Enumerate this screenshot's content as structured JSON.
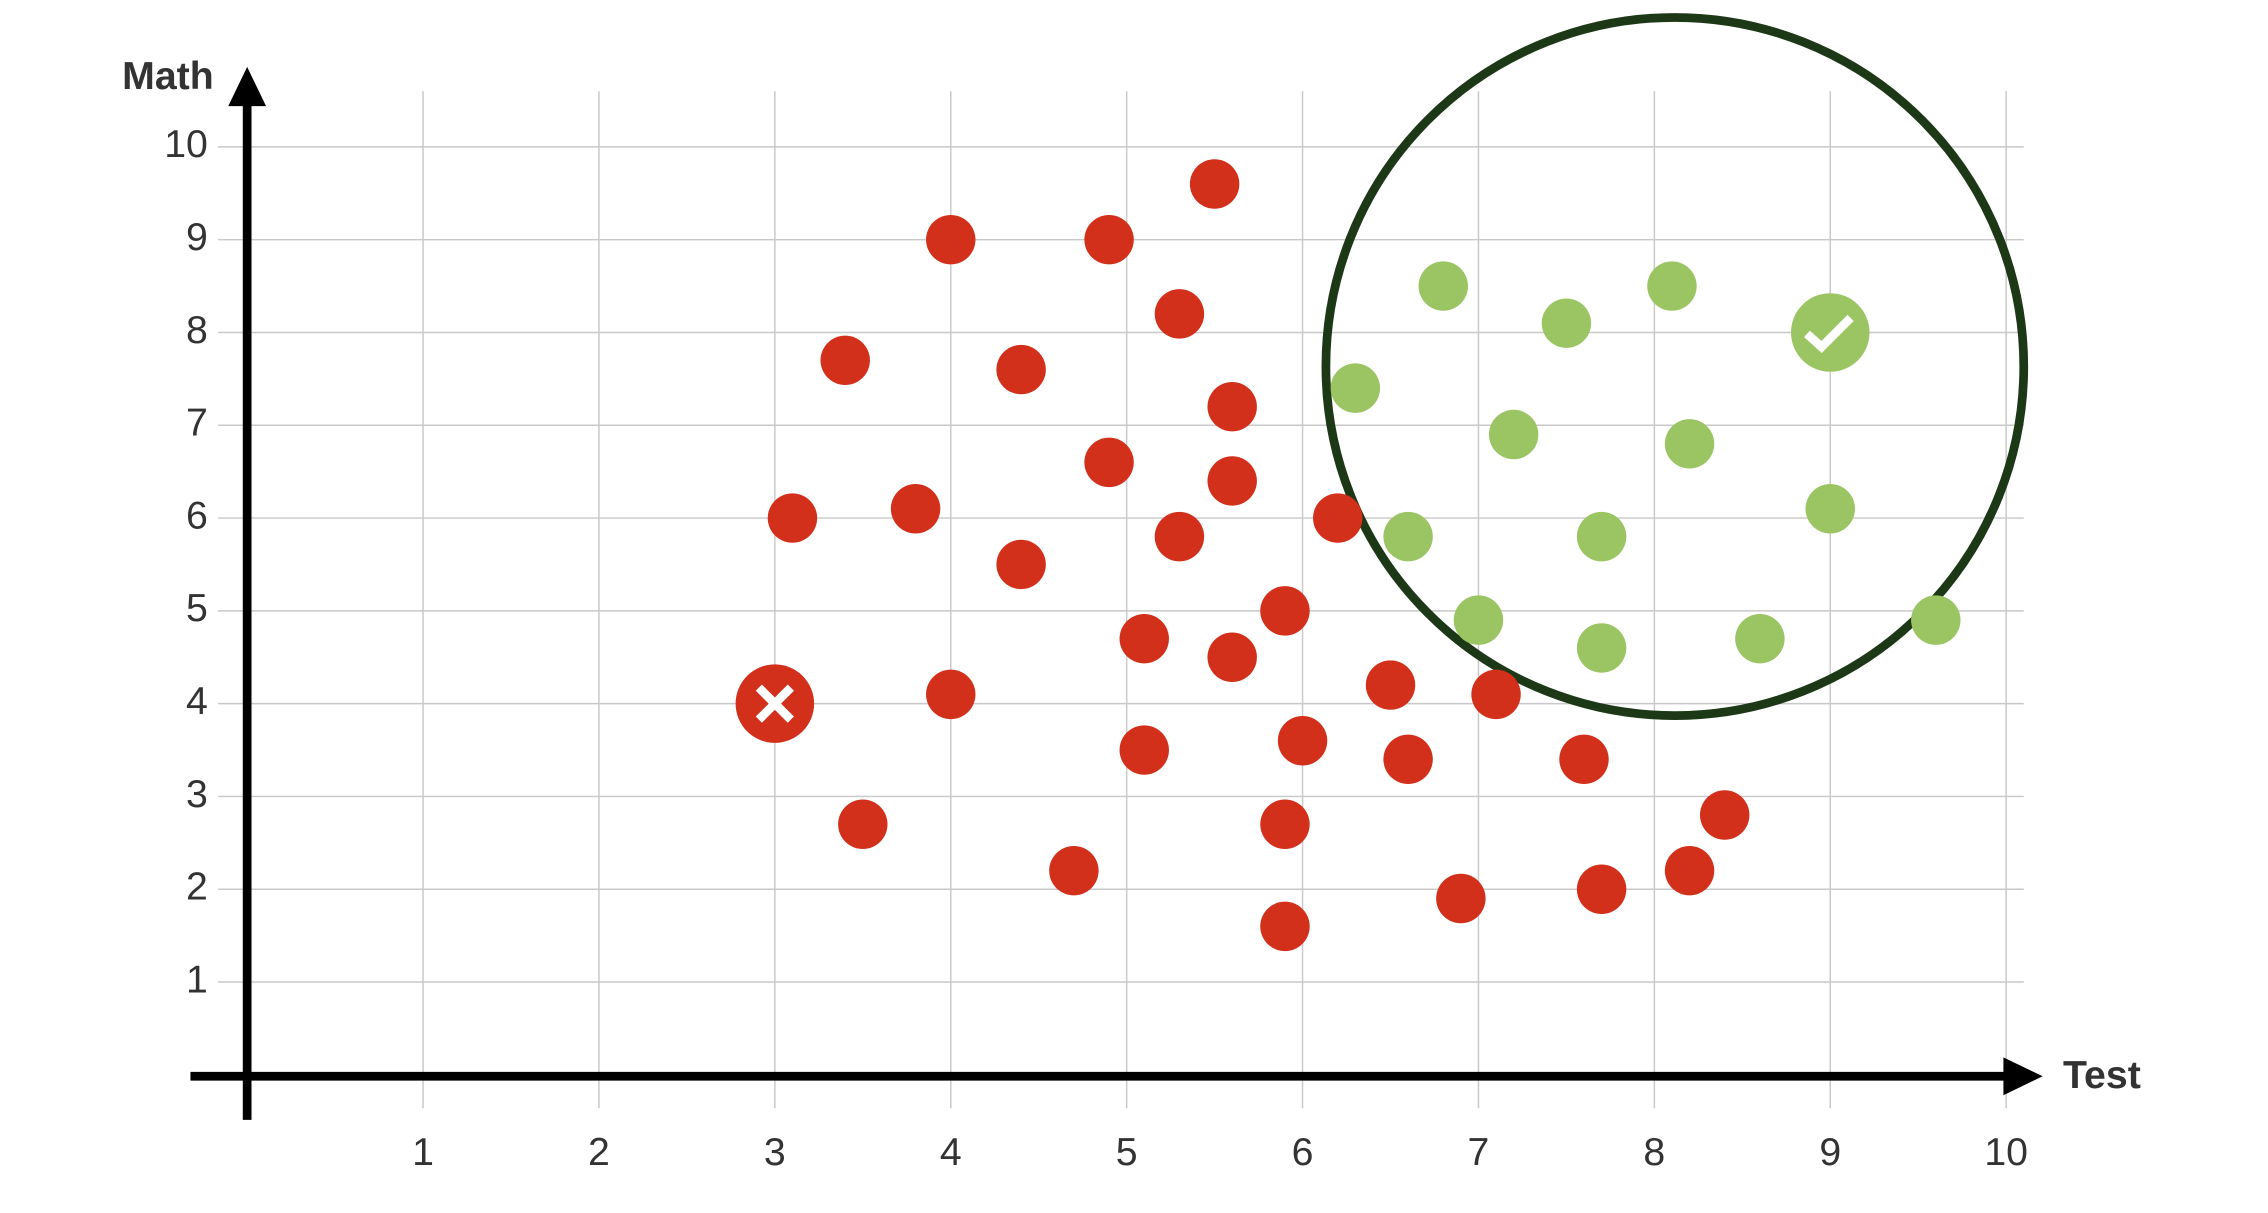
{
  "chart_data": {
    "type": "scatter",
    "x_label": "Test",
    "y_label": "Math",
    "xlim": [
      0,
      10.1
    ],
    "ylim": [
      0,
      10.6
    ],
    "xticks": [
      1,
      2,
      3,
      4,
      5,
      6,
      7,
      8,
      9,
      10
    ],
    "yticks": [
      1,
      2,
      3,
      4,
      5,
      6,
      7,
      8,
      9,
      10
    ],
    "grid": true,
    "series": [
      {
        "color": "#d3301c",
        "marker": "dot",
        "x": [
          3.4,
          3.1,
          3.8,
          4.0,
          4.9,
          5.5,
          4.4,
          5.3,
          5.6,
          4.9,
          5.6,
          4.4,
          5.3,
          6.2,
          5.9,
          5.1,
          5.6,
          4.0,
          6.5,
          7.1,
          5.1,
          6.0,
          6.6,
          7.6,
          3.5,
          5.9,
          8.4,
          4.7,
          8.2,
          6.9,
          7.7,
          5.9
        ],
        "values": [
          7.7,
          6.0,
          6.1,
          9.0,
          9.0,
          9.6,
          7.6,
          8.2,
          7.2,
          6.6,
          6.4,
          5.5,
          5.8,
          6.0,
          5.0,
          4.7,
          4.5,
          4.1,
          4.2,
          4.1,
          3.5,
          3.6,
          3.4,
          3.4,
          2.7,
          2.7,
          2.8,
          2.2,
          2.2,
          1.9,
          2.0,
          1.6
        ]
      },
      {
        "color": "#9bc463",
        "marker": "dot",
        "x": [
          6.8,
          6.3,
          7.5,
          8.1,
          7.2,
          8.2,
          9.0,
          6.6,
          7.7,
          7.0,
          7.7,
          8.6,
          9.6
        ],
        "values": [
          8.5,
          7.4,
          8.1,
          8.5,
          6.9,
          6.8,
          6.1,
          5.8,
          5.8,
          4.9,
          4.6,
          4.7,
          4.9
        ]
      },
      {
        "color": "#d3301c",
        "marker": "cross",
        "x": [
          3.0
        ],
        "values": [
          4.0
        ]
      },
      {
        "color": "#9bc463",
        "marker": "check",
        "x": [
          9.0
        ],
        "values": [
          8.0
        ]
      }
    ]
  }
}
